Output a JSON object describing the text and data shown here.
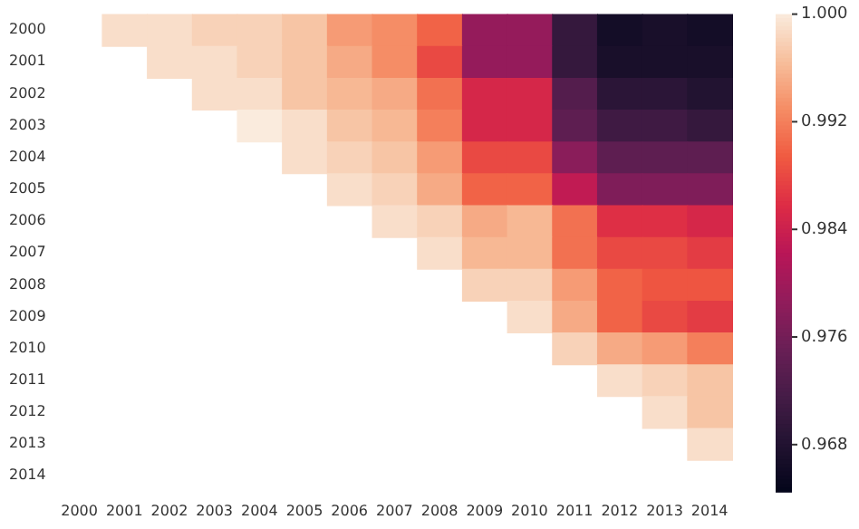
{
  "chart_data": {
    "type": "heatmap",
    "categories": [
      "2000",
      "2001",
      "2002",
      "2003",
      "2004",
      "2005",
      "2006",
      "2007",
      "2008",
      "2009",
      "2010",
      "2011",
      "2012",
      "2013",
      "2014"
    ],
    "y_categories": [
      "2000",
      "2001",
      "2002",
      "2003",
      "2004",
      "2005",
      "2006",
      "2007",
      "2008",
      "2009",
      "2010",
      "2011",
      "2012",
      "2013",
      "2014"
    ],
    "cells": [
      [
        null,
        0.999,
        0.999,
        0.998,
        0.998,
        0.997,
        0.994,
        0.993,
        0.99,
        0.979,
        0.979,
        0.97,
        0.9665,
        0.967,
        0.9665
      ],
      [
        null,
        null,
        0.999,
        0.999,
        0.998,
        0.997,
        0.995,
        0.993,
        0.988,
        0.979,
        0.979,
        0.97,
        0.967,
        0.967,
        0.967
      ],
      [
        null,
        null,
        null,
        0.999,
        0.999,
        0.997,
        0.996,
        0.995,
        0.991,
        0.985,
        0.985,
        0.973,
        0.969,
        0.969,
        0.968
      ],
      [
        null,
        null,
        null,
        null,
        1.0,
        0.999,
        0.997,
        0.996,
        0.992,
        0.985,
        0.985,
        0.974,
        0.971,
        0.971,
        0.97
      ],
      [
        null,
        null,
        null,
        null,
        null,
        0.999,
        0.998,
        0.997,
        0.994,
        0.988,
        0.988,
        0.978,
        0.974,
        0.974,
        0.974
      ],
      [
        null,
        null,
        null,
        null,
        null,
        null,
        0.999,
        0.998,
        0.995,
        0.99,
        0.99,
        0.983,
        0.977,
        0.977,
        0.977
      ],
      [
        null,
        null,
        null,
        null,
        null,
        null,
        null,
        0.999,
        0.998,
        0.995,
        0.996,
        0.991,
        0.986,
        0.986,
        0.985
      ],
      [
        null,
        null,
        null,
        null,
        null,
        null,
        null,
        null,
        0.999,
        0.996,
        0.996,
        0.991,
        0.988,
        0.988,
        0.987
      ],
      [
        null,
        null,
        null,
        null,
        null,
        null,
        null,
        null,
        null,
        0.998,
        0.998,
        0.994,
        0.99,
        0.989,
        0.989
      ],
      [
        null,
        null,
        null,
        null,
        null,
        null,
        null,
        null,
        null,
        null,
        0.999,
        0.995,
        0.99,
        0.988,
        0.987
      ],
      [
        null,
        null,
        null,
        null,
        null,
        null,
        null,
        null,
        null,
        null,
        null,
        0.998,
        0.995,
        0.994,
        0.992
      ],
      [
        null,
        null,
        null,
        null,
        null,
        null,
        null,
        null,
        null,
        null,
        null,
        null,
        0.999,
        0.998,
        0.997
      ],
      [
        null,
        null,
        null,
        null,
        null,
        null,
        null,
        null,
        null,
        null,
        null,
        null,
        null,
        0.999,
        0.997
      ],
      [
        null,
        null,
        null,
        null,
        null,
        null,
        null,
        null,
        null,
        null,
        null,
        null,
        null,
        null,
        0.999
      ],
      [
        null,
        null,
        null,
        null,
        null,
        null,
        null,
        null,
        null,
        null,
        null,
        null,
        null,
        null,
        null
      ]
    ],
    "clim": [
      0.9645,
      1.0
    ],
    "cticks": [
      0.968,
      0.976,
      0.984,
      0.992,
      {
        "value": 1.0,
        "label": "1.000"
      }
    ]
  }
}
